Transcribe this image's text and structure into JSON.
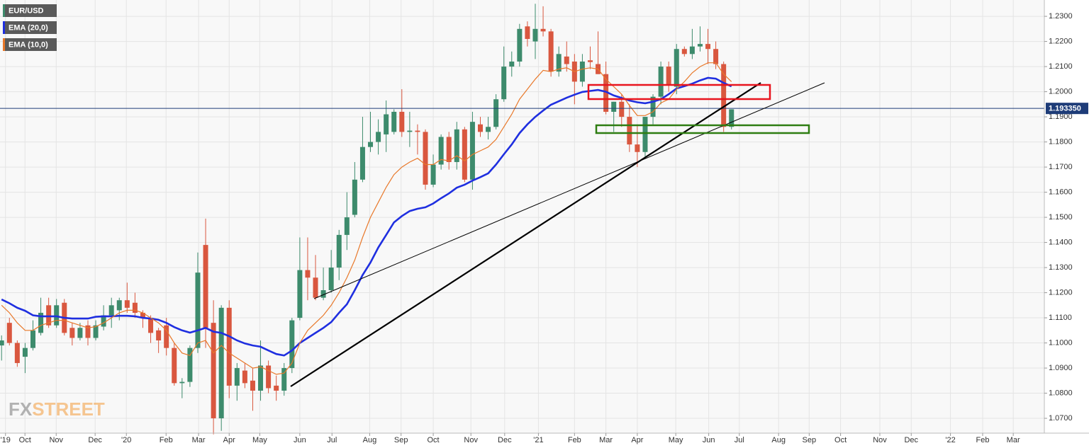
{
  "chart_data": {
    "type": "candlestick",
    "title": "EUR/USD",
    "up_color": "#3d8b6c",
    "down_color": "#d9573f",
    "open": [
      1.099,
      1.108,
      1.1,
      1.0945,
      1.098,
      1.104,
      1.115,
      1.107,
      1.116,
      1.106,
      1.102,
      1.107,
      1.102,
      1.1065,
      1.111,
      1.113,
      1.117,
      1.116,
      1.112,
      1.11,
      1.105,
      1.107,
      1.098,
      1.084,
      1.0845,
      1.098,
      1.139,
      1.108,
      1.07,
      1.114,
      1.083,
      1.089,
      1.085,
      1.081,
      1.091,
      1.083,
      1.081,
      1.09,
      1.11,
      1.129,
      1.126,
      1.118,
      1.121,
      1.13,
      1.143,
      1.151,
      1.165,
      1.178,
      1.18,
      1.183,
      1.184,
      1.192,
      1.184,
      1.1845,
      1.184,
      1.163,
      1.171,
      1.182,
      1.172,
      1.185,
      1.165,
      1.187,
      1.184,
      1.186,
      1.197,
      1.21,
      1.212,
      1.226,
      1.22,
      1.225,
      1.224,
      1.208,
      1.214,
      1.212,
      1.204,
      1.2125,
      1.211,
      1.207,
      1.192,
      1.196,
      1.19,
      1.179,
      1.176,
      1.19,
      1.198,
      1.21,
      1.202,
      1.217,
      1.215,
      1.218,
      1.219,
      1.217,
      1.211,
      1.186
    ],
    "high": [
      1.103,
      1.11,
      1.101,
      1.1,
      1.109,
      1.118,
      1.118,
      1.1175,
      1.1175,
      1.108,
      1.108,
      1.109,
      1.109,
      1.115,
      1.118,
      1.118,
      1.124,
      1.12,
      1.113,
      1.111,
      1.106,
      1.11,
      1.1,
      1.086,
      1.099,
      1.136,
      1.1495,
      1.117,
      1.115,
      1.117,
      1.092,
      1.092,
      1.09,
      1.101,
      1.093,
      1.087,
      1.092,
      1.11,
      1.142,
      1.142,
      1.135,
      1.13,
      1.137,
      1.145,
      1.16,
      1.172,
      1.19,
      1.192,
      1.189,
      1.1965,
      1.193,
      1.201,
      1.192,
      1.187,
      1.185,
      1.175,
      1.183,
      1.184,
      1.188,
      1.186,
      1.192,
      1.19,
      1.19,
      1.199,
      1.218,
      1.216,
      1.227,
      1.228,
      1.235,
      1.234,
      1.225,
      1.218,
      1.22,
      1.215,
      1.215,
      1.218,
      1.224,
      1.212,
      1.196,
      1.199,
      1.195,
      1.187,
      1.19,
      1.199,
      1.212,
      1.212,
      1.219,
      1.218,
      1.225,
      1.226,
      1.225,
      1.22,
      1.212,
      1.193
    ],
    "low": [
      1.093,
      1.099,
      1.0905,
      1.088,
      1.097,
      1.103,
      1.106,
      1.106,
      1.103,
      1.099,
      1.101,
      1.099,
      1.101,
      1.105,
      1.106,
      1.109,
      1.112,
      1.11,
      1.106,
      1.1,
      1.096,
      1.095,
      1.083,
      1.078,
      1.0825,
      1.096,
      1.098,
      1.0636,
      1.065,
      1.078,
      1.077,
      1.082,
      1.073,
      1.077,
      1.08,
      1.077,
      1.079,
      1.088,
      1.109,
      1.117,
      1.117,
      1.117,
      1.12,
      1.125,
      1.137,
      1.15,
      1.164,
      1.176,
      1.175,
      1.176,
      1.183,
      1.182,
      1.178,
      1.175,
      1.161,
      1.162,
      1.169,
      1.169,
      1.169,
      1.164,
      1.161,
      1.182,
      1.181,
      1.185,
      1.196,
      1.206,
      1.21,
      1.218,
      1.213,
      1.222,
      1.206,
      1.206,
      1.208,
      1.195,
      1.202,
      1.209,
      1.207,
      1.191,
      1.184,
      1.186,
      1.176,
      1.17,
      1.174,
      1.187,
      1.195,
      1.2,
      1.199,
      1.214,
      1.213,
      1.216,
      1.211,
      1.209,
      1.184,
      1.185
    ],
    "close": [
      1.101,
      1.1,
      1.092,
      1.098,
      1.105,
      1.112,
      1.107,
      1.115,
      1.104,
      1.102,
      1.106,
      1.102,
      1.107,
      1.111,
      1.115,
      1.117,
      1.114,
      1.112,
      1.11,
      1.104,
      1.101,
      1.098,
      1.084,
      1.0845,
      1.098,
      1.128,
      1.106,
      1.07,
      1.114,
      1.083,
      1.09,
      1.084,
      1.081,
      1.091,
      1.082,
      1.081,
      1.09,
      1.109,
      1.129,
      1.126,
      1.118,
      1.121,
      1.13,
      1.143,
      1.15,
      1.165,
      1.178,
      1.18,
      1.184,
      1.191,
      1.192,
      1.184,
      1.1845,
      1.184,
      1.163,
      1.171,
      1.182,
      1.172,
      1.185,
      1.165,
      1.188,
      1.184,
      1.186,
      1.197,
      1.21,
      1.212,
      1.225,
      1.221,
      1.225,
      1.224,
      1.208,
      1.215,
      1.211,
      1.204,
      1.212,
      1.2118,
      1.207,
      1.192,
      1.196,
      1.19,
      1.179,
      1.176,
      1.19,
      1.198,
      1.21,
      1.203,
      1.217,
      1.215,
      1.218,
      1.219,
      1.217,
      1.211,
      1.186,
      1.193
    ],
    "series": [
      {
        "name": "EMA (20,0)",
        "color": "#1f2fe0",
        "values": [
          1.1173,
          1.1158,
          1.114,
          1.1128,
          1.111,
          1.1106,
          1.1106,
          1.1106,
          1.11,
          1.1097,
          1.1097,
          1.1097,
          1.1104,
          1.1106,
          1.1106,
          1.1108,
          1.1108,
          1.1106,
          1.11,
          1.1097,
          1.1092,
          1.108,
          1.1063,
          1.105,
          1.1041,
          1.105,
          1.106,
          1.1045,
          1.104,
          1.1027,
          1.101,
          1.0998,
          1.099,
          1.0985,
          1.097,
          1.0956,
          1.095,
          1.097,
          1.1,
          1.102,
          1.104,
          1.106,
          1.1083,
          1.112,
          1.1154,
          1.121,
          1.127,
          1.132,
          1.138,
          1.143,
          1.148,
          1.1505,
          1.1525,
          1.1534,
          1.154,
          1.1555,
          1.1576,
          1.1595,
          1.1618,
          1.163,
          1.1646,
          1.166,
          1.1675,
          1.171,
          1.1751,
          1.179,
          1.1835,
          1.187,
          1.19,
          1.1925,
          1.1948,
          1.1962,
          1.1976,
          1.1988,
          1.1999,
          1.2003,
          1.2007,
          1.2,
          1.1985,
          1.1975,
          1.1965,
          1.1958,
          1.1954,
          1.196,
          1.197,
          1.199,
          1.2013,
          1.2022,
          1.2032,
          1.2045,
          1.2055,
          1.2052,
          1.2035,
          1.2021
        ]
      },
      {
        "name": "EMA (10,0)",
        "color": "#e8782a",
        "values": [
          1.115,
          1.112,
          1.108,
          1.105,
          1.105,
          1.107,
          1.108,
          1.109,
          1.109,
          1.108,
          1.107,
          1.106,
          1.1065,
          1.108,
          1.11,
          1.112,
          1.113,
          1.113,
          1.112,
          1.11,
          1.108,
          1.105,
          1.1,
          1.096,
          1.095,
          1.1,
          1.101,
          1.096,
          1.099,
          1.096,
          1.094,
          1.092,
          1.09,
          1.0905,
          1.089,
          1.0875,
          1.088,
          1.092,
          1.1,
          1.105,
          1.108,
          1.111,
          1.115,
          1.12,
          1.126,
          1.133,
          1.142,
          1.15,
          1.156,
          1.162,
          1.167,
          1.17,
          1.172,
          1.1735,
          1.171,
          1.171,
          1.173,
          1.1725,
          1.1745,
          1.1725,
          1.175,
          1.1765,
          1.178,
          1.181,
          1.186,
          1.191,
          1.197,
          1.201,
          1.205,
          1.2085,
          1.208,
          1.209,
          1.2095,
          1.208,
          1.209,
          1.2095,
          1.209,
          1.205,
          1.202,
          1.199,
          1.1945,
          1.1905,
          1.1905,
          1.192,
          1.1955,
          1.197,
          1.201,
          1.204,
          1.2075,
          1.21,
          1.2115,
          1.2115,
          1.207,
          1.204
        ]
      }
    ],
    "xlim": [
      -0.2,
      132.86
    ],
    "xticks": [
      {
        "value": 0.5,
        "label": "'19"
      },
      {
        "value": 2.98,
        "label": "Oct"
      },
      {
        "value": 6.96,
        "label": "Nov"
      },
      {
        "value": 11.92,
        "label": "Dec"
      },
      {
        "value": 15.9,
        "label": "'20"
      },
      {
        "value": 20.96,
        "label": "Feb"
      },
      {
        "value": 25.1,
        "label": "Mar"
      },
      {
        "value": 29.0,
        "label": "Apr"
      },
      {
        "value": 32.9,
        "label": "May"
      },
      {
        "value": 38.0,
        "label": "Jun"
      },
      {
        "value": 42.1,
        "label": "Jul"
      },
      {
        "value": 46.9,
        "label": "Aug"
      },
      {
        "value": 50.9,
        "label": "Sep"
      },
      {
        "value": 55.0,
        "label": "Oct"
      },
      {
        "value": 59.8,
        "label": "Nov"
      },
      {
        "value": 64.1,
        "label": "Dec"
      },
      {
        "value": 68.4,
        "label": "'21"
      },
      {
        "value": 73.0,
        "label": "Feb"
      },
      {
        "value": 77.0,
        "label": "Mar"
      },
      {
        "value": 81.0,
        "label": "Apr"
      },
      {
        "value": 85.9,
        "label": "May"
      },
      {
        "value": 90.1,
        "label": "Jun"
      },
      {
        "value": 94.0,
        "label": "Jul"
      },
      {
        "value": 99.0,
        "label": "Aug"
      },
      {
        "value": 102.9,
        "label": "Sep"
      },
      {
        "value": 106.9,
        "label": "Oct"
      },
      {
        "value": 111.9,
        "label": "Nov"
      },
      {
        "value": 115.9,
        "label": "Dec"
      },
      {
        "value": 120.9,
        "label": "'22"
      },
      {
        "value": 125.0,
        "label": "Feb"
      },
      {
        "value": 128.9,
        "label": "Mar"
      }
    ],
    "ylim": [
      1.0641,
      1.2365
    ],
    "yticks": [
      {
        "value": 1.07,
        "label": "1.0700"
      },
      {
        "value": 1.08,
        "label": "1.0800"
      },
      {
        "value": 1.09,
        "label": "1.0900"
      },
      {
        "value": 1.1,
        "label": "1.1000"
      },
      {
        "value": 1.11,
        "label": "1.1100"
      },
      {
        "value": 1.12,
        "label": "1.1200"
      },
      {
        "value": 1.13,
        "label": "1.1300"
      },
      {
        "value": 1.14,
        "label": "1.1400"
      },
      {
        "value": 1.15,
        "label": "1.1500"
      },
      {
        "value": 1.16,
        "label": "1.1600"
      },
      {
        "value": 1.17,
        "label": "1.1700"
      },
      {
        "value": 1.18,
        "label": "1.1800"
      },
      {
        "value": 1.19,
        "label": "1.1900"
      },
      {
        "value": 1.2,
        "label": "1.2000"
      },
      {
        "value": 1.21,
        "label": "1.2100"
      },
      {
        "value": 1.22,
        "label": "1.2200"
      },
      {
        "value": 1.23,
        "label": "1.2300"
      }
    ],
    "last_price": {
      "value": 1.19335,
      "label": "1.193350"
    },
    "grid": true,
    "watermark": [
      "FX",
      "STREET"
    ]
  }
}
